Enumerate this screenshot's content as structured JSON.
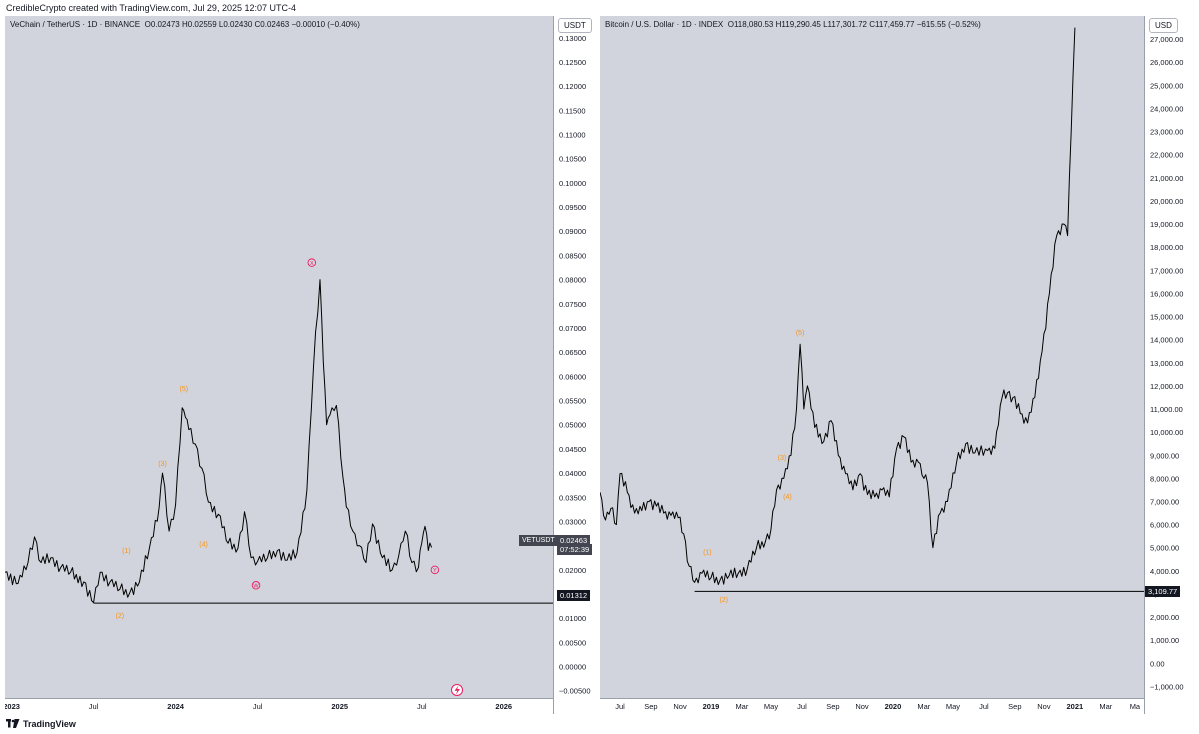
{
  "header": {
    "attribution": "CredibleCrypto created with TradingView.com, Jul 29, 2025 12:07 UTC-4"
  },
  "footer": {
    "brand": "TradingView",
    "logo_icon": "tradingview-logo-icon"
  },
  "colors": {
    "plot_bg": "#d1d4dc",
    "candle": "#000000",
    "wave_orange": "#f7931a",
    "wave_pink": "#e91e63",
    "support_line": "#000000"
  },
  "left": {
    "title": "VeChain / TetherUS · 1D · BINANCE",
    "ohlc": [
      {
        "k": "O",
        "v": "0.02473"
      },
      {
        "k": "H",
        "v": "0.02559"
      },
      {
        "k": "L",
        "v": "0.02430"
      },
      {
        "k": "C",
        "v": "0.02463"
      },
      {
        "k": "",
        "v": "−0.00010 (−0.40%)"
      }
    ],
    "unit": "USDT",
    "symbol_tag": "VETUSDT",
    "last_price": "0.02463",
    "countdown": "07:52:39",
    "support_price": "0.01312",
    "lightning_icon": "lightning-icon"
  },
  "right": {
    "title": "Bitcoin / U.S. Dollar · 1D · INDEX",
    "ohlc": [
      {
        "k": "O",
        "v": "118,080.53"
      },
      {
        "k": "H",
        "v": "119,290.45"
      },
      {
        "k": "L",
        "v": "117,301.72"
      },
      {
        "k": "C",
        "v": "117,459.77"
      },
      {
        "k": "",
        "v": "−615.55 (−0.52%)"
      }
    ],
    "unit": "USD",
    "support_price": "3,109.77"
  },
  "chart_data": [
    {
      "type": "line",
      "title": "VeChain / TetherUS · 1D · BINANCE",
      "ylim": [
        -0.0065,
        0.1345
      ],
      "y_ticks": [
        "−0.00500",
        "0.00000",
        "0.00500",
        "0.01000",
        "0.01500",
        "0.02000",
        "0.02500",
        "0.03000",
        "0.03500",
        "0.04000",
        "0.04500",
        "0.05000",
        "0.05500",
        "0.06000",
        "0.06500",
        "0.07000",
        "0.07500",
        "0.08000",
        "0.08500",
        "0.09000",
        "0.09500",
        "0.10000",
        "0.10500",
        "0.11000",
        "0.11500",
        "0.12000",
        "0.12500",
        "0.13000"
      ],
      "x_ticks": [
        {
          "label": "2023",
          "t": 0.0,
          "bold": true
        },
        {
          "label": "Jul",
          "t": 0.5,
          "bold": false
        },
        {
          "label": "2024",
          "t": 1.0,
          "bold": true
        },
        {
          "label": "Jul",
          "t": 1.5,
          "bold": false
        },
        {
          "label": "2025",
          "t": 2.0,
          "bold": true
        },
        {
          "label": "Jul",
          "t": 2.5,
          "bold": false
        },
        {
          "label": "2026",
          "t": 3.0,
          "bold": true
        }
      ],
      "x_range": [
        -0.04,
        3.3
      ],
      "series": [
        {
          "x": [
            -0.04,
            0.04,
            0.1,
            0.14,
            0.18,
            0.24,
            0.3,
            0.36,
            0.44,
            0.5,
            0.54,
            0.6,
            0.66,
            0.72,
            0.78,
            0.84,
            0.9,
            0.92,
            0.96,
            1.0,
            1.04,
            1.06,
            1.08,
            1.12,
            1.16,
            1.2,
            1.26,
            1.32,
            1.38,
            1.42,
            1.46,
            1.5,
            1.56,
            1.62,
            1.68,
            1.74,
            1.8,
            1.84,
            1.88,
            1.9,
            1.92,
            1.94,
            1.98,
            2.02,
            2.04,
            2.08,
            2.12,
            2.16,
            2.2,
            2.26,
            2.32,
            2.36,
            2.4,
            2.44,
            2.48,
            2.5,
            2.52,
            2.54,
            2.56
          ],
          "values": [
            0.0195,
            0.0172,
            0.0215,
            0.0268,
            0.0215,
            0.0225,
            0.0205,
            0.0195,
            0.0175,
            0.0132,
            0.0195,
            0.0175,
            0.016,
            0.0152,
            0.0175,
            0.0245,
            0.033,
            0.04,
            0.028,
            0.0335,
            0.0535,
            0.0515,
            0.049,
            0.046,
            0.041,
            0.034,
            0.0315,
            0.0255,
            0.0245,
            0.032,
            0.0225,
            0.0218,
            0.0225,
            0.024,
            0.022,
            0.0235,
            0.0365,
            0.062,
            0.08,
            0.063,
            0.05,
            0.052,
            0.054,
            0.039,
            0.033,
            0.028,
            0.025,
            0.0215,
            0.0295,
            0.0225,
            0.02,
            0.023,
            0.028,
            0.0215,
            0.0205,
            0.0255,
            0.029,
            0.024,
            0.02463
          ]
        }
      ],
      "support": 0.01312,
      "wave_labels": [
        {
          "label": "(1)",
          "x": 0.7,
          "y": 0.0235,
          "color": "orange"
        },
        {
          "label": "(2)",
          "x": 0.66,
          "y": 0.01,
          "color": "orange"
        },
        {
          "label": "(3)",
          "x": 0.92,
          "y": 0.0415,
          "color": "orange"
        },
        {
          "label": "(4)",
          "x": 1.17,
          "y": 0.0248,
          "color": "orange"
        },
        {
          "label": "(5)",
          "x": 1.05,
          "y": 0.057,
          "color": "orange"
        },
        {
          "label": "X",
          "x": 1.83,
          "y": 0.0835,
          "color": "pink"
        },
        {
          "label": "W",
          "x": 1.49,
          "y": 0.0168,
          "color": "pink"
        },
        {
          "label": "Y",
          "x": 2.58,
          "y": 0.02,
          "color": "pink"
        }
      ]
    },
    {
      "type": "line",
      "title": "Bitcoin / U.S. Dollar · 1D · INDEX",
      "ylim": [
        -1500,
        28000
      ],
      "y_ticks": [
        "−1,000.00",
        "0.00",
        "1,000.00",
        "2,000.00",
        "3,000.00",
        "4,000.00",
        "5,000.00",
        "6,000.00",
        "7,000.00",
        "8,000.00",
        "9,000.00",
        "10,000.00",
        "11,000.00",
        "12,000.00",
        "13,000.00",
        "14,000.00",
        "15,000.00",
        "16,000.00",
        "17,000.00",
        "18,000.00",
        "19,000.00",
        "20,000.00",
        "21,000.00",
        "22,000.00",
        "23,000.00",
        "24,000.00",
        "25,000.00",
        "26,000.00",
        "27,000.00"
      ],
      "x_ticks": [
        {
          "label": "Jul",
          "t": 2018.5,
          "bold": false
        },
        {
          "label": "Sep",
          "t": 2018.67,
          "bold": false
        },
        {
          "label": "Nov",
          "t": 2018.83,
          "bold": false
        },
        {
          "label": "2019",
          "t": 2019.0,
          "bold": true
        },
        {
          "label": "Mar",
          "t": 2019.17,
          "bold": false
        },
        {
          "label": "May",
          "t": 2019.33,
          "bold": false
        },
        {
          "label": "Jul",
          "t": 2019.5,
          "bold": false
        },
        {
          "label": "Sep",
          "t": 2019.67,
          "bold": false
        },
        {
          "label": "Nov",
          "t": 2019.83,
          "bold": false
        },
        {
          "label": "2020",
          "t": 2020.0,
          "bold": true
        },
        {
          "label": "Mar",
          "t": 2020.17,
          "bold": false
        },
        {
          "label": "May",
          "t": 2020.33,
          "bold": false
        },
        {
          "label": "Jul",
          "t": 2020.5,
          "bold": false
        },
        {
          "label": "Sep",
          "t": 2020.67,
          "bold": false
        },
        {
          "label": "Nov",
          "t": 2020.83,
          "bold": false
        },
        {
          "label": "2021",
          "t": 2021.0,
          "bold": true
        },
        {
          "label": "Mar",
          "t": 2021.17,
          "bold": false
        },
        {
          "label": "Ma",
          "t": 2021.33,
          "bold": false
        }
      ],
      "x_range": [
        2018.39,
        2021.38
      ],
      "series": [
        {
          "x": [
            2018.39,
            2018.42,
            2018.45,
            2018.48,
            2018.5,
            2018.54,
            2018.58,
            2018.62,
            2018.66,
            2018.7,
            2018.74,
            2018.78,
            2018.82,
            2018.85,
            2018.88,
            2018.91,
            2018.95,
            2019.0,
            2019.05,
            2019.1,
            2019.15,
            2019.2,
            2019.25,
            2019.3,
            2019.33,
            2019.36,
            2019.4,
            2019.44,
            2019.47,
            2019.49,
            2019.51,
            2019.53,
            2019.57,
            2019.62,
            2019.66,
            2019.7,
            2019.74,
            2019.78,
            2019.82,
            2019.86,
            2019.9,
            2019.94,
            2019.98,
            2020.02,
            2020.06,
            2020.1,
            2020.14,
            2020.17,
            2020.19,
            2020.22,
            2020.26,
            2020.3,
            2020.35,
            2020.4,
            2020.45,
            2020.52,
            2020.56,
            2020.6,
            2020.63,
            2020.66,
            2020.7,
            2020.74,
            2020.78,
            2020.82,
            2020.86,
            2020.9,
            2020.94,
            2020.96,
            2020.98,
            2021.0
          ],
          "values": [
            7400,
            6200,
            6700,
            6000,
            8200,
            7400,
            6500,
            6600,
            7000,
            6800,
            6500,
            6400,
            6300,
            5600,
            4200,
            3500,
            3900,
            3700,
            3600,
            3800,
            3900,
            4100,
            5000,
            5300,
            5800,
            7500,
            8000,
            9000,
            11000,
            13800,
            11000,
            12000,
            10200,
            9600,
            10500,
            9000,
            8200,
            7500,
            8200,
            7300,
            7200,
            7500,
            7200,
            9300,
            9800,
            8700,
            8700,
            8000,
            7800,
            5000,
            6500,
            7000,
            8700,
            9500,
            9100,
            9200,
            9300,
            11500,
            11700,
            11500,
            10800,
            10400,
            11500,
            13500,
            16000,
            18500,
            19000,
            18500,
            23000,
            27500
          ]
        }
      ],
      "support": 3109.77,
      "wave_labels": [
        {
          "label": "(1)",
          "x": 2018.98,
          "y": 4700,
          "color": "orange"
        },
        {
          "label": "(2)",
          "x": 2019.07,
          "y": 2650,
          "color": "orange"
        },
        {
          "label": "(3)",
          "x": 2019.39,
          "y": 8800,
          "color": "orange"
        },
        {
          "label": "(4)",
          "x": 2019.42,
          "y": 7100,
          "color": "orange"
        },
        {
          "label": "(5)",
          "x": 2019.49,
          "y": 14200,
          "color": "orange"
        }
      ]
    }
  ]
}
